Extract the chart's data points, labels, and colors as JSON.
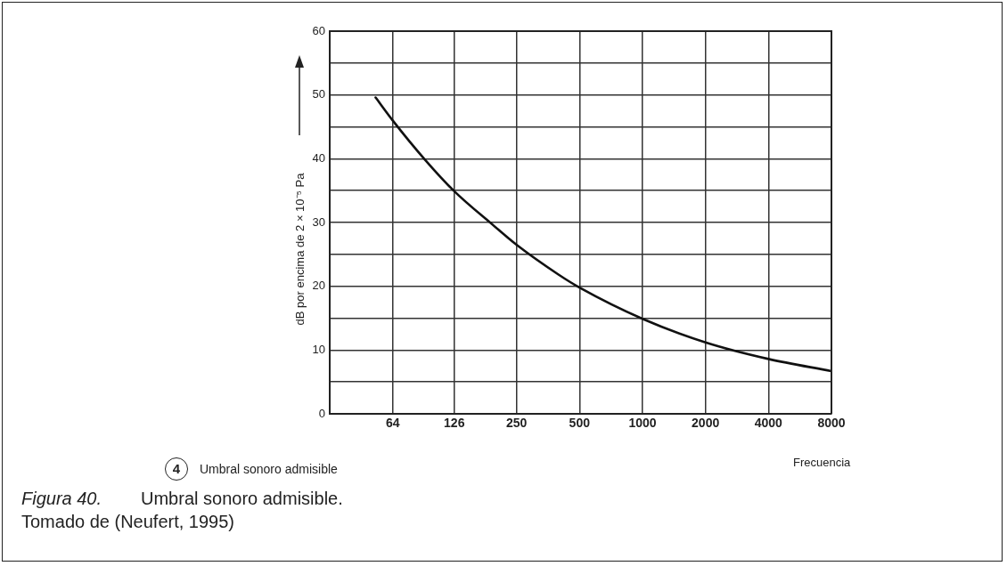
{
  "chart_data": {
    "type": "line",
    "xlabel": "Frecuencia",
    "ylabel": "dB por encima de 2 × 10⁻⁵ Pa",
    "log": "x",
    "x": [
      53,
      64,
      91,
      126,
      193,
      250,
      398,
      500,
      1000,
      2000,
      4000,
      8000
    ],
    "series": [
      {
        "color": "#111111",
        "values": [
          49.6,
          46.0,
          39.9,
          34.9,
          29.6,
          26.5,
          21.8,
          19.8,
          14.9,
          11.2,
          8.6,
          6.7
        ]
      }
    ],
    "xlim": [
      32,
      8000
    ],
    "xticks": [
      64,
      126,
      250,
      500,
      1000,
      2000,
      4000,
      8000
    ],
    "ylim": [
      0,
      60
    ],
    "yticks": [
      0,
      {
        "value": 5,
        "label": null
      },
      10,
      {
        "value": 15,
        "label": null
      },
      20,
      {
        "value": 25,
        "label": null
      },
      30,
      {
        "value": 35,
        "label": null
      },
      40,
      {
        "value": 45,
        "label": null
      },
      50,
      {
        "value": 55,
        "label": null
      },
      60
    ],
    "grid": true,
    "legend": false,
    "marker": "none",
    "line_style": "solid",
    "annotations": [
      "4",
      "Umbral sonoro admisible",
      "Figura 40.",
      "Umbral sonoro admisible.",
      "Tomado de (Neufert, 1995)"
    ]
  }
}
